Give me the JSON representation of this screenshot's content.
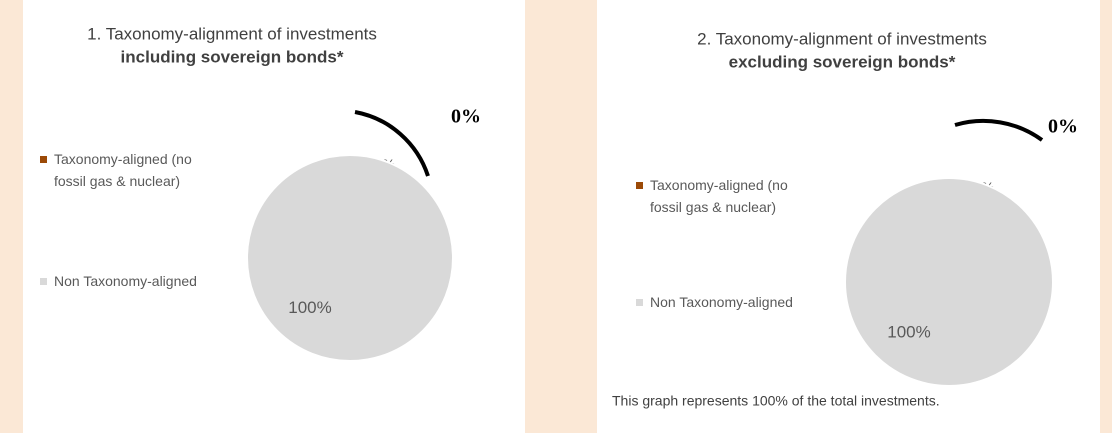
{
  "chart_data": [
    {
      "type": "pie",
      "title": "1. Taxonomy-alignment of investments",
      "subtitle": "including sovereign bonds*",
      "categories": [
        "Taxonomy-aligned (no fossil gas & nuclear)",
        "Non Taxonomy-aligned"
      ],
      "values": [
        0,
        100
      ],
      "value_labels": [
        "0%",
        "100%"
      ],
      "colors": [
        "#9c4a07",
        "#d9d9d9"
      ],
      "annotation": "0%"
    },
    {
      "type": "pie",
      "title": "2. Taxonomy-alignment of investments",
      "subtitle": "excluding sovereign bonds*",
      "categories": [
        "Taxonomy-aligned (no fossil gas & nuclear)",
        "Non Taxonomy-aligned"
      ],
      "values": [
        0,
        100
      ],
      "value_labels": [
        "0%",
        "100%"
      ],
      "colors": [
        "#9c4a07",
        "#d9d9d9"
      ],
      "annotation": "0%",
      "footnote": "This graph represents 100% of the total investments."
    }
  ]
}
